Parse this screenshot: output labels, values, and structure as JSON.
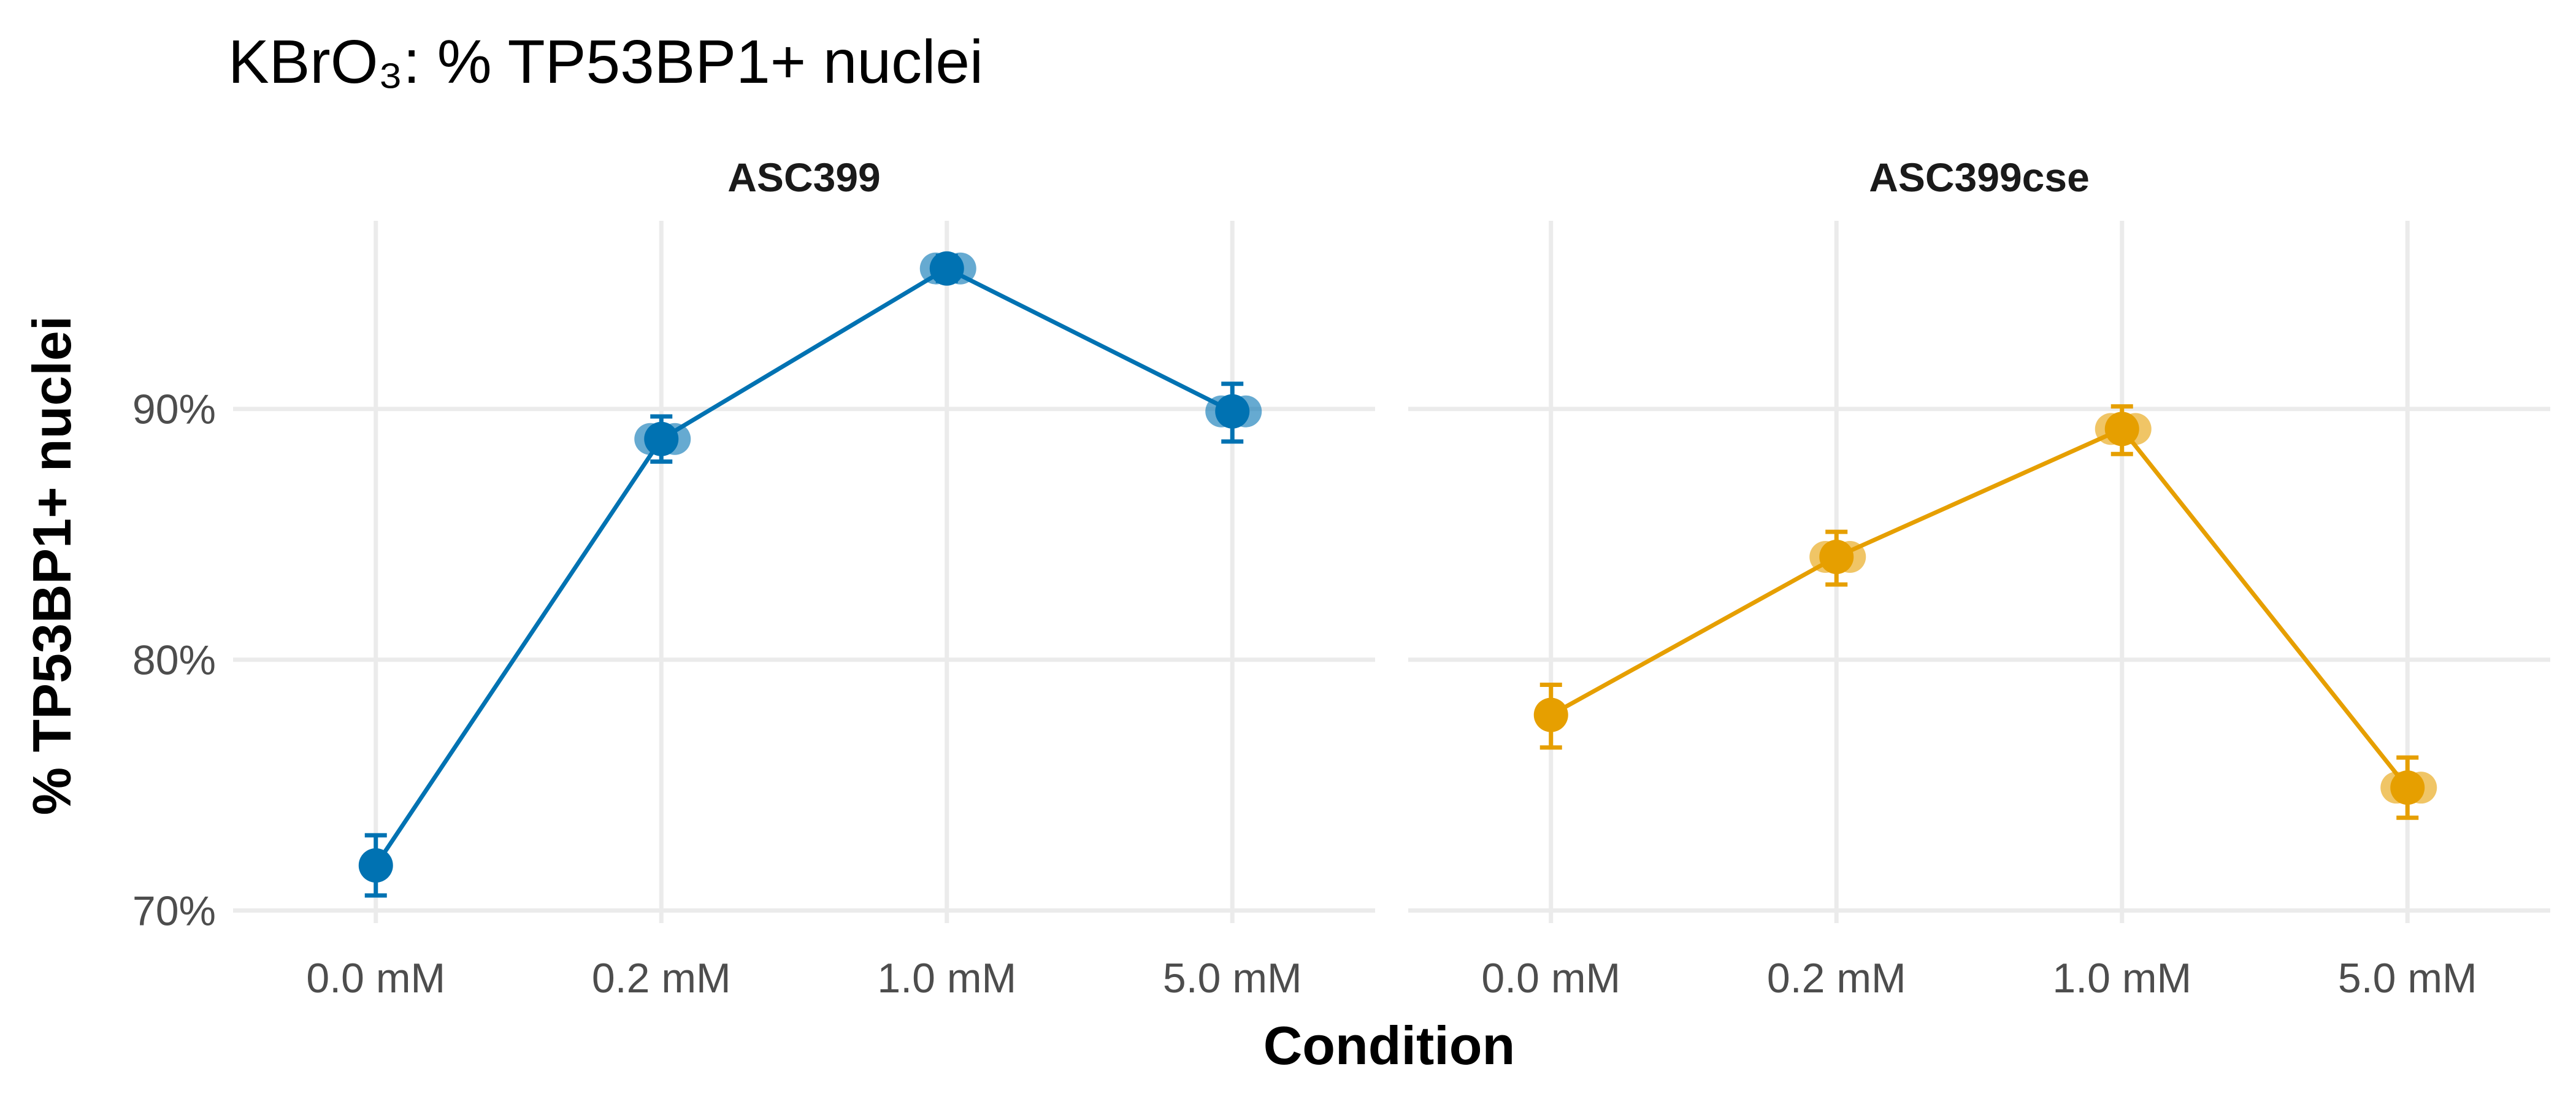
{
  "chart_data": {
    "type": "line",
    "title": "KBrO₃: % TP53BP1+ nuclei",
    "xlabel": "Condition",
    "ylabel": "% TP53BP1+ nuclei",
    "categories": [
      "0.0 mM",
      "0.2 mM",
      "1.0 mM",
      "5.0 mM"
    ],
    "ylim": [
      69.5,
      97.5
    ],
    "yticks": [
      70,
      80,
      90
    ],
    "ytick_labels": [
      "70%",
      "80%",
      "90%"
    ],
    "grid": true,
    "legend": "none",
    "panels": [
      {
        "name": "ASC399",
        "color": "#0072B2",
        "mean": [
          71.8,
          88.8,
          95.6,
          89.9
        ],
        "error_low": [
          70.6,
          87.9,
          95.1,
          88.7
        ],
        "error_high": [
          73.0,
          89.7,
          96.1,
          91.0
        ],
        "replicates": [
          [
            71.8
          ],
          [
            88.8,
            88.8
          ],
          [
            95.6,
            95.6
          ],
          [
            89.9,
            89.9
          ]
        ]
      },
      {
        "name": "ASC399cse",
        "color": "#E69F00",
        "mean": [
          77.8,
          84.1,
          89.2,
          74.9
        ],
        "error_low": [
          76.5,
          83.0,
          88.2,
          73.7
        ],
        "error_high": [
          79.0,
          85.1,
          90.1,
          76.1
        ],
        "replicates": [
          [
            77.8
          ],
          [
            84.1,
            84.1
          ],
          [
            89.2,
            89.2
          ],
          [
            74.9,
            74.9
          ]
        ]
      }
    ]
  }
}
